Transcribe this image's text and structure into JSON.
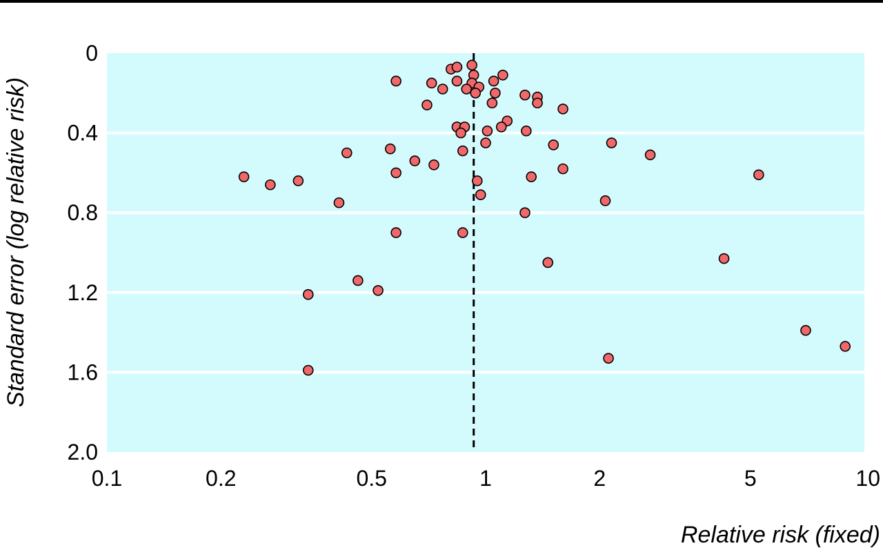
{
  "chart_data": {
    "type": "scatter",
    "xlabel": "Relative risk (fixed)",
    "ylabel": "Standard error (log relative risk)",
    "x_scale": "log",
    "xlim": [
      0.1,
      10
    ],
    "ylim": [
      0,
      2.0
    ],
    "y_inverted": true,
    "x_ticks": [
      0.1,
      0.2,
      0.5,
      1,
      2,
      5,
      10
    ],
    "x_tick_labels": [
      "0.1",
      "0.2",
      "0.5",
      "1",
      "2",
      "5",
      "10"
    ],
    "y_ticks": [
      0,
      0.4,
      0.8,
      1.2,
      1.6,
      2.0
    ],
    "y_tick_labels": [
      "0",
      "0.4",
      "0.8",
      "1.2",
      "1.6",
      "2.0"
    ],
    "grid": "horizontal",
    "reference_line_x": 0.93,
    "colors": {
      "plot_background": "#d3fbfd",
      "point_fill": "#f0686a",
      "point_stroke": "#000000"
    },
    "points": [
      {
        "x": 0.81,
        "y": 0.08
      },
      {
        "x": 0.84,
        "y": 0.07
      },
      {
        "x": 0.92,
        "y": 0.06
      },
      {
        "x": 0.93,
        "y": 0.11
      },
      {
        "x": 1.11,
        "y": 0.11
      },
      {
        "x": 0.58,
        "y": 0.14
      },
      {
        "x": 0.72,
        "y": 0.15
      },
      {
        "x": 0.84,
        "y": 0.14
      },
      {
        "x": 0.92,
        "y": 0.15
      },
      {
        "x": 1.05,
        "y": 0.14
      },
      {
        "x": 0.77,
        "y": 0.18
      },
      {
        "x": 0.89,
        "y": 0.18
      },
      {
        "x": 0.96,
        "y": 0.17
      },
      {
        "x": 0.94,
        "y": 0.2
      },
      {
        "x": 1.06,
        "y": 0.2
      },
      {
        "x": 1.27,
        "y": 0.21
      },
      {
        "x": 1.37,
        "y": 0.22
      },
      {
        "x": 0.7,
        "y": 0.26
      },
      {
        "x": 1.04,
        "y": 0.25
      },
      {
        "x": 1.37,
        "y": 0.25
      },
      {
        "x": 1.6,
        "y": 0.28
      },
      {
        "x": 0.84,
        "y": 0.37
      },
      {
        "x": 0.88,
        "y": 0.37
      },
      {
        "x": 0.86,
        "y": 0.4
      },
      {
        "x": 1.01,
        "y": 0.39
      },
      {
        "x": 1.14,
        "y": 0.34
      },
      {
        "x": 1.1,
        "y": 0.37
      },
      {
        "x": 1.28,
        "y": 0.39
      },
      {
        "x": 0.43,
        "y": 0.5
      },
      {
        "x": 0.56,
        "y": 0.48
      },
      {
        "x": 0.87,
        "y": 0.49
      },
      {
        "x": 1.0,
        "y": 0.45
      },
      {
        "x": 1.51,
        "y": 0.46
      },
      {
        "x": 2.15,
        "y": 0.45
      },
      {
        "x": 2.72,
        "y": 0.51
      },
      {
        "x": 0.23,
        "y": 0.62
      },
      {
        "x": 0.27,
        "y": 0.66
      },
      {
        "x": 0.32,
        "y": 0.64
      },
      {
        "x": 0.58,
        "y": 0.6
      },
      {
        "x": 0.65,
        "y": 0.54
      },
      {
        "x": 0.73,
        "y": 0.56
      },
      {
        "x": 0.95,
        "y": 0.64
      },
      {
        "x": 1.32,
        "y": 0.62
      },
      {
        "x": 1.6,
        "y": 0.58
      },
      {
        "x": 5.26,
        "y": 0.61
      },
      {
        "x": 0.41,
        "y": 0.75
      },
      {
        "x": 0.97,
        "y": 0.71
      },
      {
        "x": 1.27,
        "y": 0.8
      },
      {
        "x": 2.07,
        "y": 0.74
      },
      {
        "x": 0.58,
        "y": 0.9
      },
      {
        "x": 0.87,
        "y": 0.9
      },
      {
        "x": 1.46,
        "y": 1.05
      },
      {
        "x": 4.26,
        "y": 1.03
      },
      {
        "x": 0.46,
        "y": 1.14
      },
      {
        "x": 0.52,
        "y": 1.19
      },
      {
        "x": 0.34,
        "y": 1.21
      },
      {
        "x": 7.0,
        "y": 1.39
      },
      {
        "x": 8.9,
        "y": 1.47
      },
      {
        "x": 2.11,
        "y": 1.53
      },
      {
        "x": 0.34,
        "y": 1.59
      }
    ]
  }
}
